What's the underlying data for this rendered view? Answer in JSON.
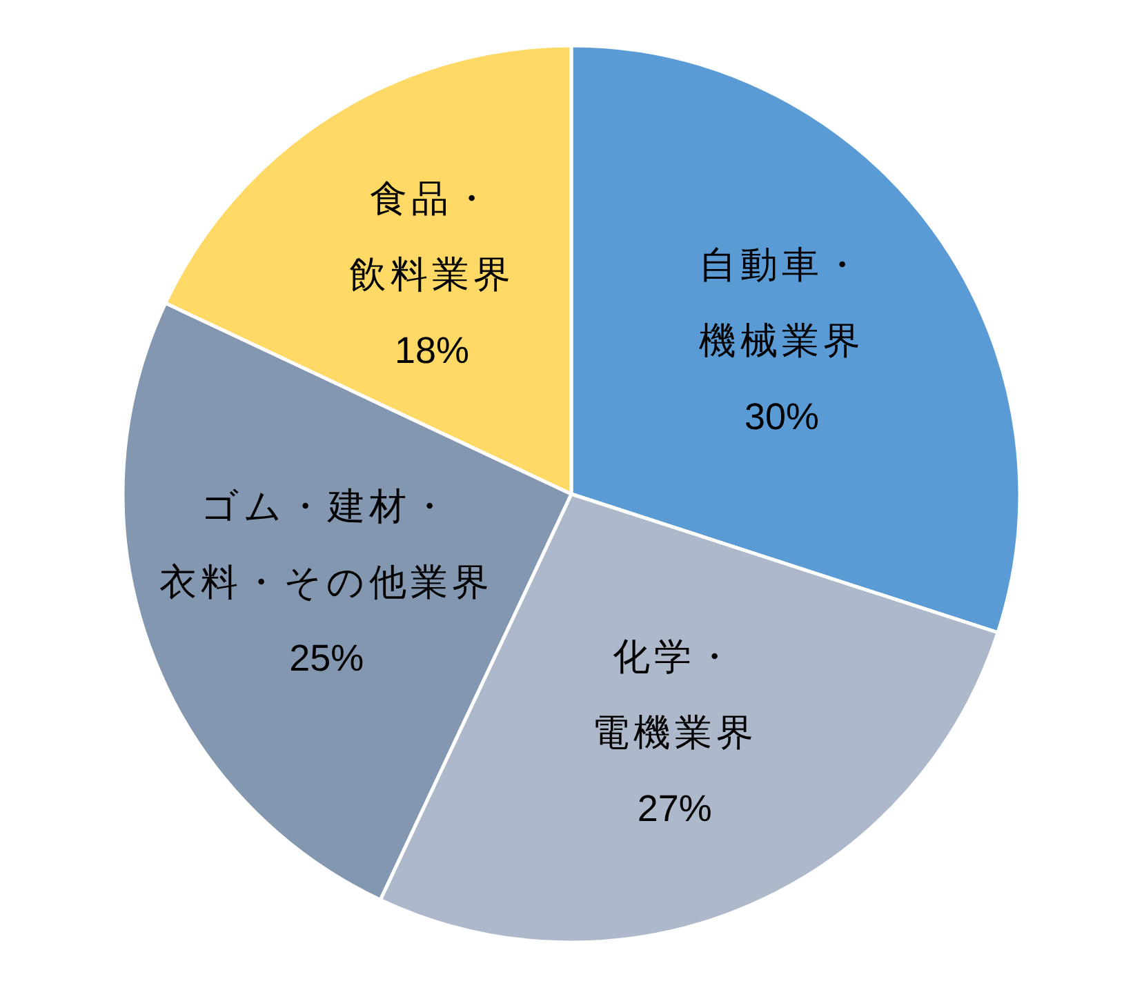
{
  "chart_data": {
    "type": "pie",
    "categories": [
      "自動車・機械業界",
      "化学・電機業界",
      "ゴム・建材・衣料・その他業界",
      "食品・飲料業界"
    ],
    "values": [
      30,
      27,
      25,
      18
    ],
    "colors": [
      "#5b9bd5",
      "#adb9ca",
      "#8497b0",
      "#ffd966"
    ],
    "value_labels": [
      "30%",
      "27%",
      "25%",
      "18%"
    ]
  }
}
